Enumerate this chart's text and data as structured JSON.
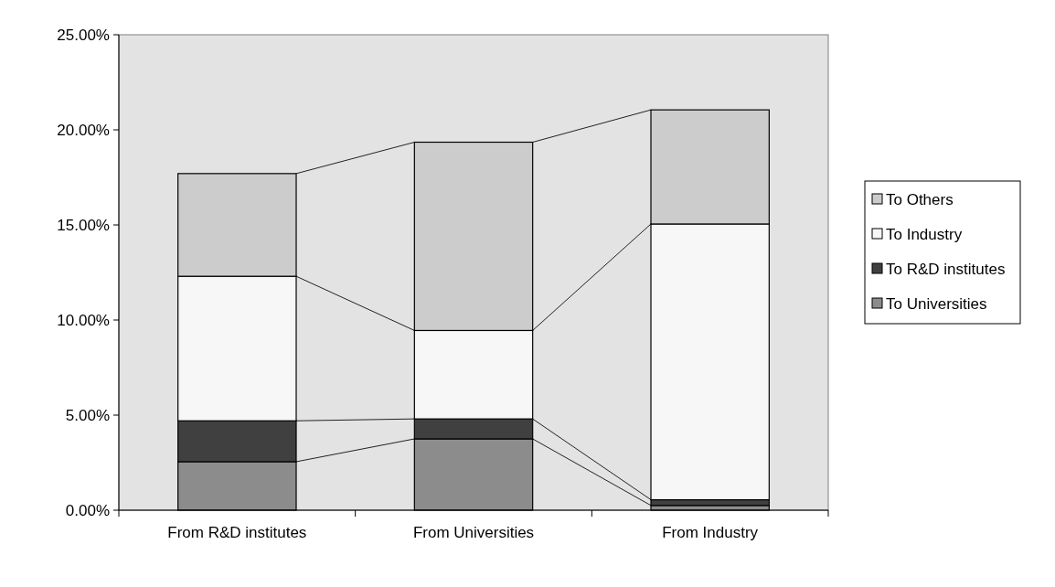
{
  "chart_data": {
    "type": "bar",
    "stacked": true,
    "categories": [
      "From R&D institutes",
      "From Universities",
      "From Industry"
    ],
    "series": [
      {
        "name": "To Universities",
        "color": "#8c8c8c",
        "values": [
          2.55,
          3.75,
          0.25
        ]
      },
      {
        "name": "To R&D institutes",
        "color": "#404040",
        "values": [
          2.15,
          1.05,
          0.3
        ]
      },
      {
        "name": "To Industry",
        "color": "#f7f7f7",
        "values": [
          7.6,
          4.65,
          14.5
        ]
      },
      {
        "name": "To Others",
        "color": "#cccccc",
        "values": [
          5.4,
          9.9,
          6.0
        ]
      }
    ],
    "ylim": [
      0,
      25
    ],
    "yticks": [
      {
        "value": 0,
        "label": "0.00%"
      },
      {
        "value": 5,
        "label": "5.00%"
      },
      {
        "value": 10,
        "label": "10.00%"
      },
      {
        "value": 15,
        "label": "15.00%"
      },
      {
        "value": 20,
        "label": "20.00%"
      },
      {
        "value": 25,
        "label": "25.00%"
      }
    ],
    "grid": false,
    "legend": "right"
  }
}
